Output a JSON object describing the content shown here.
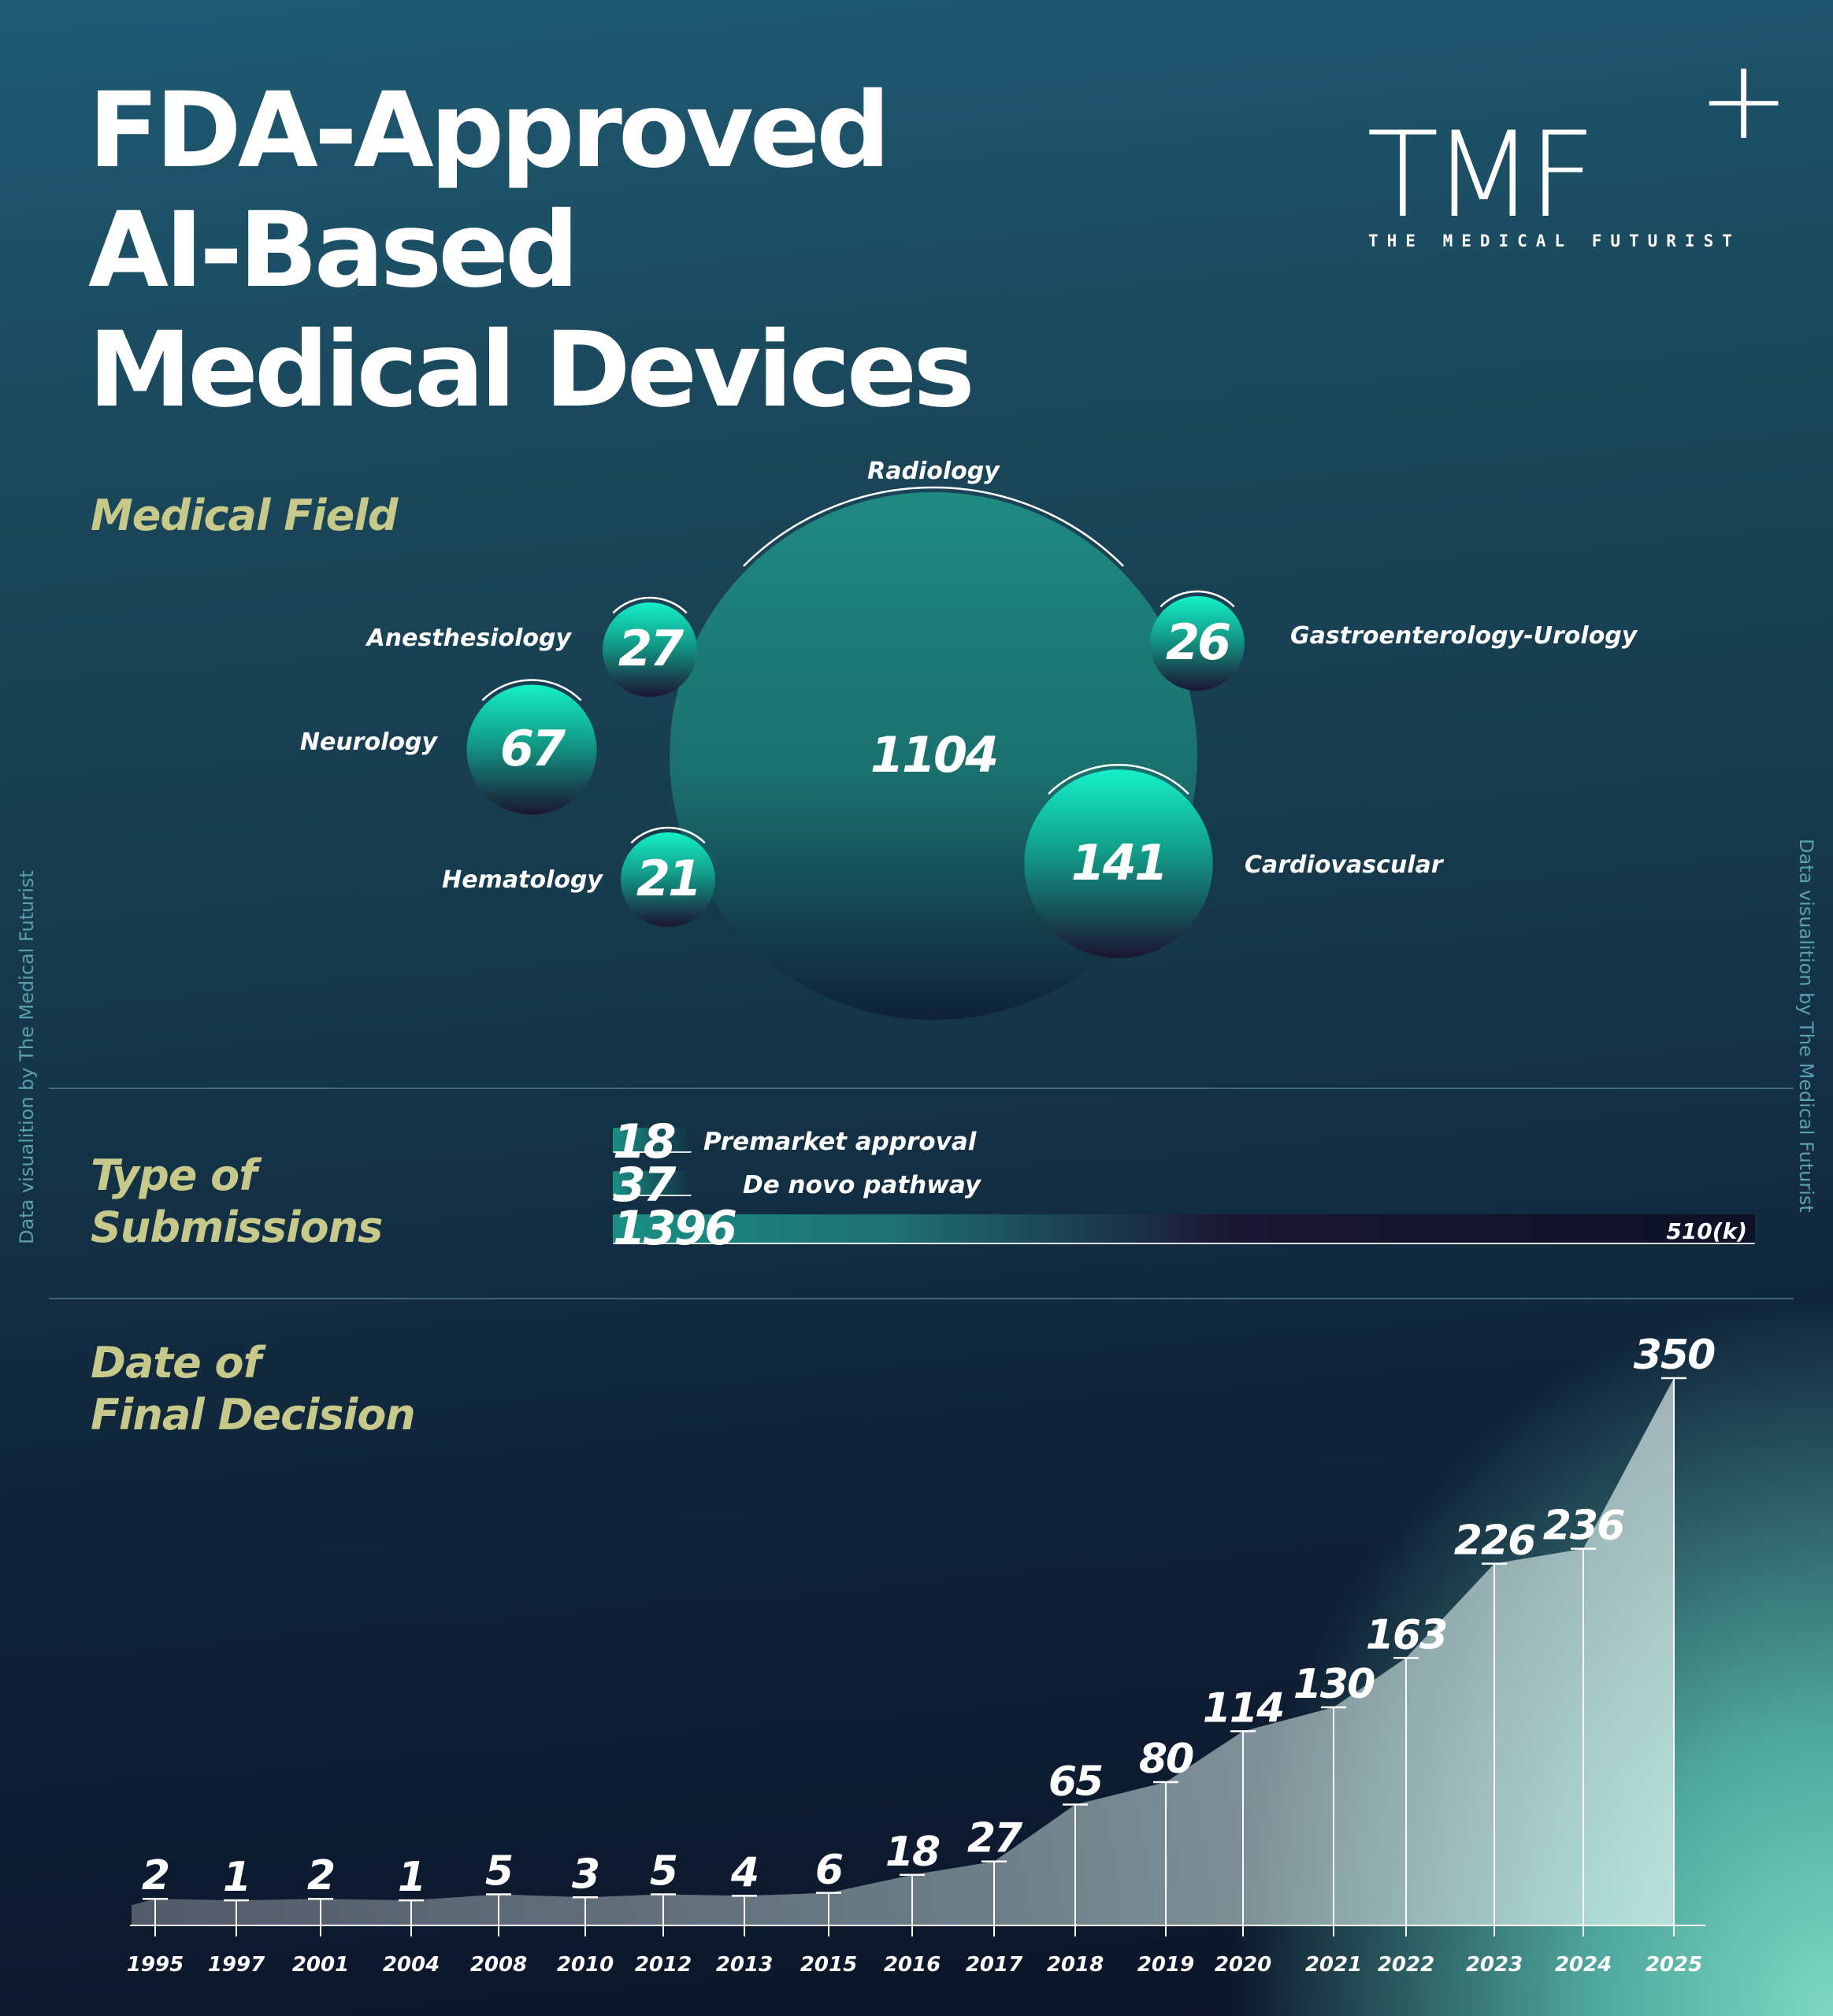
{
  "title": {
    "line1": "FDA-Approved",
    "line2": "AI-Based",
    "line3": "Medical Devices"
  },
  "logo": {
    "mark": "TMF",
    "plus": "+",
    "subtitle": "THE MEDICAL FUTURIST"
  },
  "sidebar_credit": "Data visualition by The Medical Futurist",
  "sections": {
    "field": "Medical Field",
    "submissions_line1": "Type of",
    "submissions_line2": "Submissions",
    "date_line1": "Date of",
    "date_line2": "Final Decision"
  },
  "colors": {
    "accent_label": "#c6c98a",
    "bubble_teal": "#1f8a80",
    "bubble_bright": "#14f0c8",
    "bubble_dark": "#1a1530"
  },
  "chart_data": [
    {
      "type": "bubble",
      "title": "Medical Field",
      "bubbles": [
        {
          "label": "Radiology",
          "value": 1104
        },
        {
          "label": "Cardiovascular",
          "value": 141
        },
        {
          "label": "Neurology",
          "value": 67
        },
        {
          "label": "Anesthesiology",
          "value": 27
        },
        {
          "label": "Gastroenterology-Urology",
          "value": 26
        },
        {
          "label": "Hematology",
          "value": 21
        }
      ]
    },
    {
      "type": "bar",
      "title": "Type of Submissions",
      "bars": [
        {
          "label": "Premarket approval",
          "value": 18
        },
        {
          "label": "De novo pathway",
          "value": 37
        },
        {
          "label": "510(k)",
          "value": 1396
        }
      ]
    },
    {
      "type": "area",
      "title": "Date of Final Decision",
      "x": [
        "1995",
        "1997",
        "2001",
        "2004",
        "2008",
        "2010",
        "2012",
        "2013",
        "2015",
        "2016",
        "2017",
        "2018",
        "2019",
        "2020",
        "2021",
        "2022",
        "2023",
        "2024",
        "2025"
      ],
      "y": [
        2,
        1,
        2,
        1,
        5,
        3,
        5,
        4,
        6,
        18,
        27,
        65,
        80,
        114,
        130,
        163,
        226,
        236,
        350
      ],
      "ylim": [
        0,
        350
      ]
    }
  ]
}
